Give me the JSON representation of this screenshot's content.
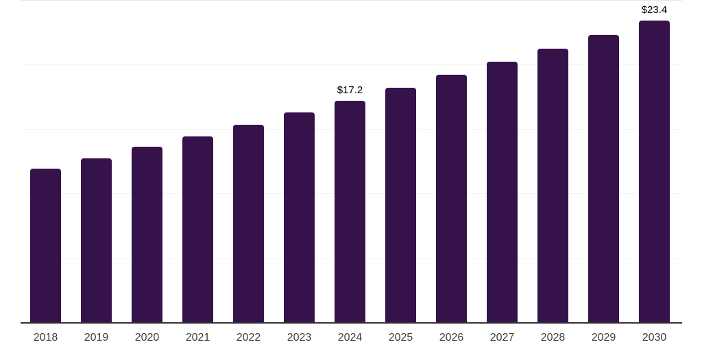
{
  "chart_data": {
    "type": "bar",
    "title": "",
    "xlabel": "",
    "ylabel": "",
    "categories": [
      "2018",
      "2019",
      "2020",
      "2021",
      "2022",
      "2023",
      "2024",
      "2025",
      "2026",
      "2027",
      "2028",
      "2029",
      "2030"
    ],
    "values": [
      11.9,
      12.7,
      13.6,
      14.4,
      15.3,
      16.3,
      17.2,
      18.2,
      19.2,
      20.2,
      21.2,
      22.3,
      23.4
    ],
    "bar_labels": [
      "",
      "",
      "",
      "",
      "",
      "",
      "$17.2",
      "",
      "",
      "",
      "",
      "",
      "$23.4"
    ],
    "ylim": [
      0,
      25
    ],
    "gridline_step": 5,
    "grid": "horizontal-only",
    "legend": "none",
    "y_axis_labels_visible": false
  },
  "colors": {
    "bar": "#36124b",
    "axis_line": "#333333",
    "tick_label": "#3d3d3d",
    "data_label": "#000000",
    "gridline": "#f2f2f2",
    "gridline_top": "#e7e7e7",
    "background": "#ffffff"
  }
}
